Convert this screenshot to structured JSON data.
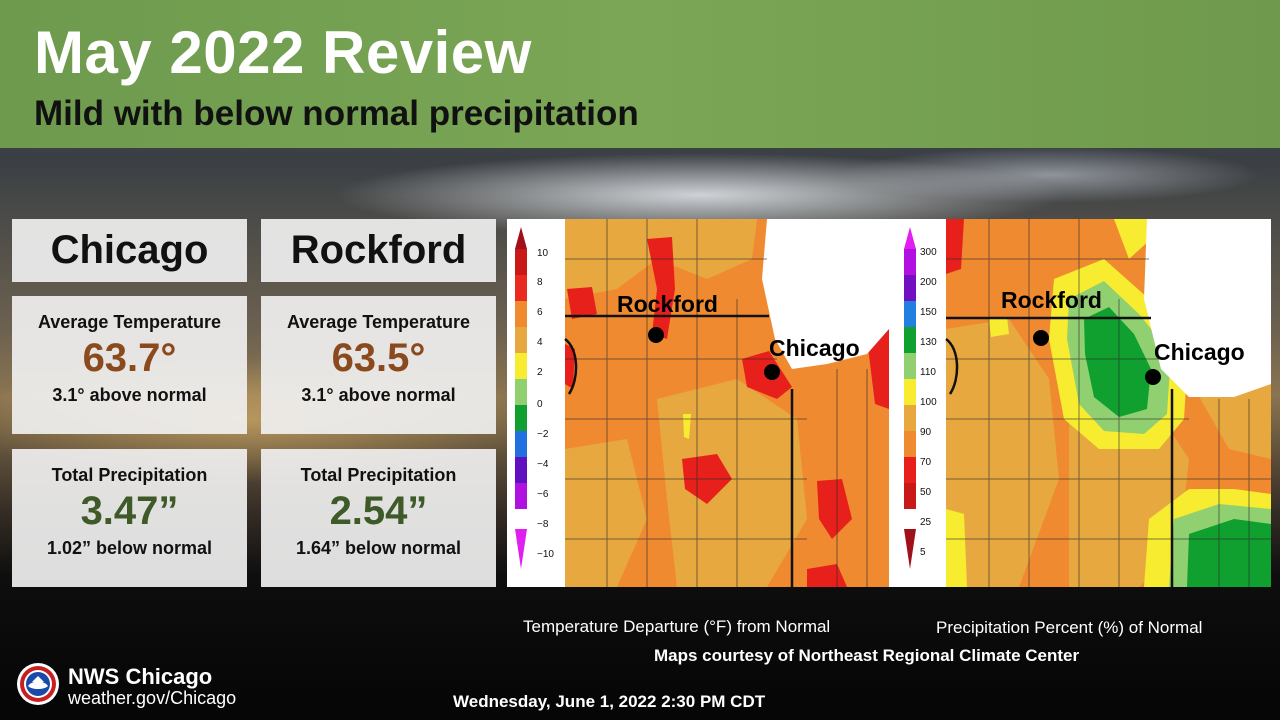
{
  "header": {
    "title": "May 2022 Review",
    "subtitle": "Mild with below normal precipitation"
  },
  "cities": [
    {
      "name": "Chicago",
      "temperature": {
        "label": "Average Temperature",
        "value": "63.7°",
        "note": "3.1° above normal"
      },
      "precipitation": {
        "label": "Total Precipitation",
        "value": "3.47”",
        "note": "1.02” below normal"
      }
    },
    {
      "name": "Rockford",
      "temperature": {
        "label": "Average Temperature",
        "value": "63.5°",
        "note": "3.1° above normal"
      },
      "precipitation": {
        "label": "Total Precipitation",
        "value": "2.54”",
        "note": "1.64” below normal"
      }
    }
  ],
  "maps": {
    "temperature": {
      "caption": "Temperature Departure (°F)  from Normal",
      "legend_ticks": [
        "10",
        "8",
        "6",
        "4",
        "2",
        "0",
        "−2",
        "−4",
        "−6",
        "−8",
        "−10"
      ],
      "city_labels": [
        "Rockford",
        "Chicago"
      ]
    },
    "precipitation": {
      "caption": "Precipitation Percent (%) of Normal",
      "legend_ticks": [
        "300",
        "200",
        "150",
        "130",
        "110",
        "100",
        "90",
        "70",
        "50",
        "25",
        "5"
      ],
      "city_labels": [
        "Rockford",
        "Chicago"
      ]
    },
    "credit": "Maps courtesy of Northeast Regional Climate Center"
  },
  "footer": {
    "org_name": "NWS Chicago",
    "org_url": "weather.gov/Chicago",
    "datetime": "Wednesday, June 1, 2022 2:30 PM CDT"
  },
  "colors": {
    "header_green": "#7aa655",
    "temp_value": "#8b4a1e",
    "precip_value": "#3e5a28"
  }
}
